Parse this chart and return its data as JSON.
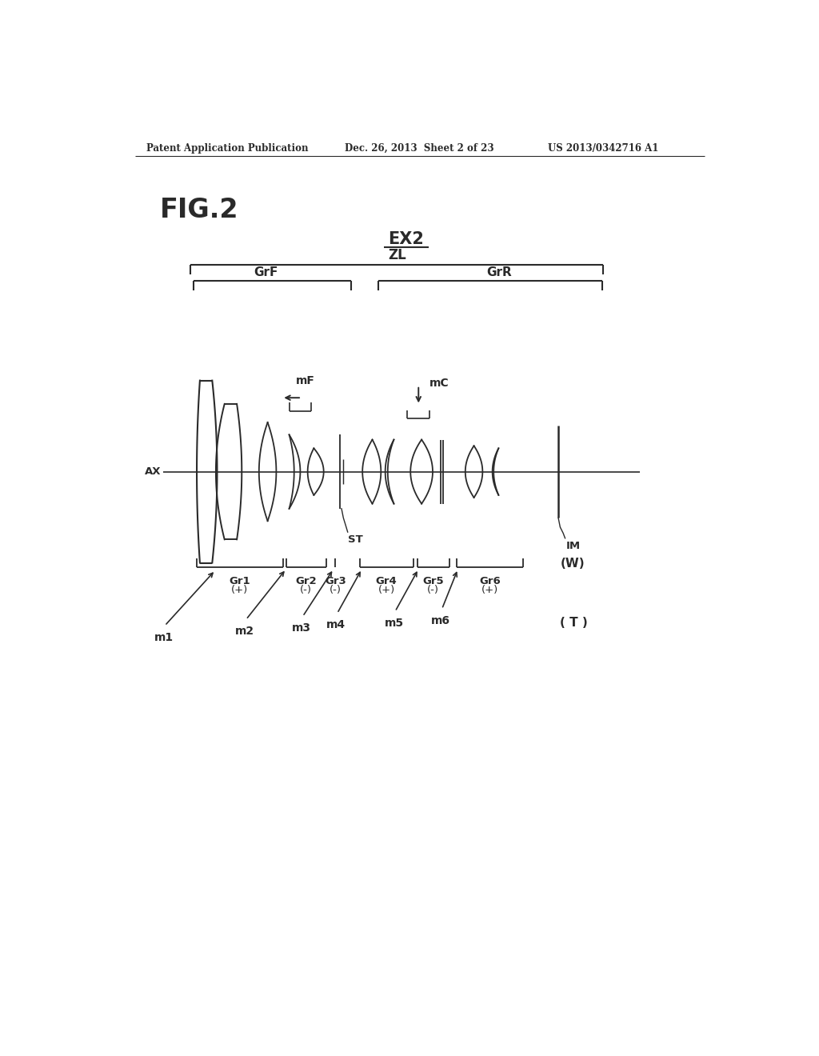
{
  "header_left": "Patent Application Publication",
  "header_mid": "Dec. 26, 2013  Sheet 2 of 23",
  "header_right": "US 2013/0342716 A1",
  "fig_label": "FIG.2",
  "ex_label": "EX2",
  "zl_label": "ZL",
  "grf_label": "GrF",
  "grr_label": "GrR",
  "ax_label": "AX",
  "mf_label": "mF",
  "mc_label": "mC",
  "st_label": "ST",
  "im_label": "IM",
  "w_label": "(W)",
  "t_label": "( T )",
  "group_names": [
    "Gr1",
    "Gr2",
    "Gr3",
    "Gr4",
    "Gr5",
    "Gr6"
  ],
  "group_signs": [
    "(+)",
    "(-)",
    "(-)",
    "(+)",
    "(-)",
    "(+)"
  ],
  "markers": [
    "m1",
    "m2",
    "m3",
    "m4",
    "m5",
    "m6"
  ],
  "bg_color": "#ffffff",
  "line_color": "#2a2a2a"
}
